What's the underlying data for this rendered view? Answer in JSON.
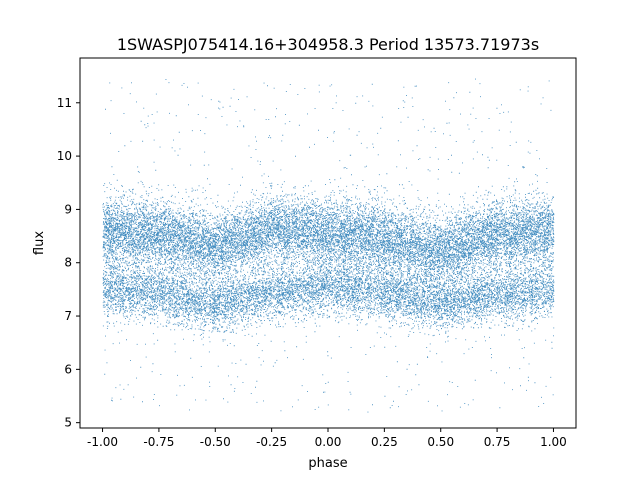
{
  "chart_data": {
    "type": "scatter",
    "title": "1SWASPJ075414.16+304958.3 Period 13573.71973s",
    "xlabel": "phase",
    "ylabel": "flux",
    "xlim": [
      -1.1,
      1.1
    ],
    "ylim": [
      4.9,
      11.84
    ],
    "xticks": [
      "-1.00",
      "-0.75",
      "-0.50",
      "-0.25",
      "0.00",
      "0.25",
      "0.50",
      "0.75",
      "1.00"
    ],
    "xtick_values": [
      -1,
      -0.75,
      -0.5,
      -0.25,
      0,
      0.25,
      0.5,
      0.75,
      1
    ],
    "yticks": [
      "5",
      "6",
      "7",
      "8",
      "9",
      "10",
      "11"
    ],
    "ytick_values": [
      5,
      6,
      7,
      8,
      9,
      10,
      11
    ],
    "grid": false,
    "marker_color": "#1f77b4",
    "series": [
      {
        "band": "upper",
        "phase": [
          -1,
          -0.75,
          -0.5,
          -0.25,
          0,
          0.25,
          0.5,
          0.75,
          1
        ],
        "flux_center": [
          8.6,
          8.55,
          8.3,
          8.65,
          8.55,
          8.45,
          8.2,
          8.55,
          8.6
        ]
      },
      {
        "band": "lower",
        "phase": [
          -1,
          -0.75,
          -0.5,
          -0.25,
          0,
          0.25,
          0.5,
          0.75,
          1
        ],
        "flux_center": [
          7.5,
          7.45,
          7.2,
          7.45,
          7.55,
          7.45,
          7.25,
          7.4,
          7.5
        ]
      }
    ],
    "outlier_range": [
      5.2,
      11.5
    ]
  }
}
